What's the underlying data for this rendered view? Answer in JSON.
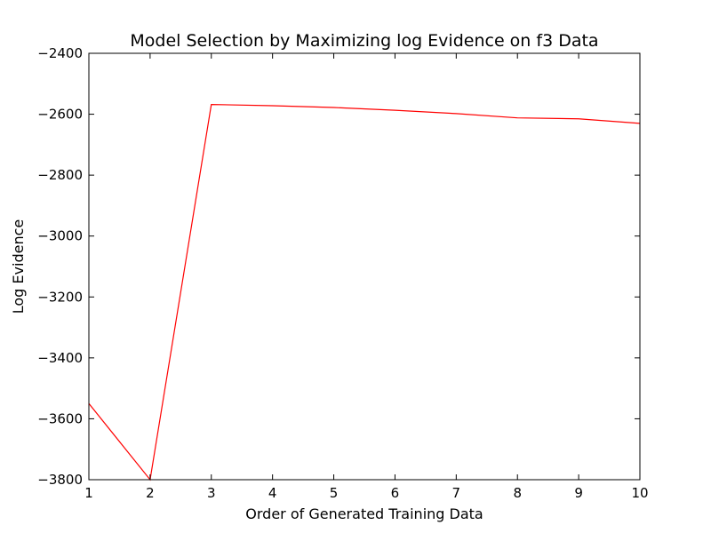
{
  "chart_data": {
    "type": "line",
    "title": "Model Selection by Maximizing log Evidence on f3 Data",
    "xlabel": "Order of Generated Training Data",
    "ylabel": "Log Evidence",
    "xlim": [
      1,
      10
    ],
    "ylim": [
      -3800,
      -2400
    ],
    "xticks": [
      1,
      2,
      3,
      4,
      5,
      6,
      7,
      8,
      9,
      10
    ],
    "yticks": [
      -2400,
      -2600,
      -2800,
      -3000,
      -3200,
      -3400,
      -3600,
      -3800
    ],
    "xtick_labels": [
      "1",
      "2",
      "3",
      "4",
      "5",
      "6",
      "7",
      "8",
      "9",
      "10"
    ],
    "ytick_labels": [
      "−2400",
      "−2600",
      "−2800",
      "−3000",
      "−3200",
      "−3400",
      "−3600",
      "−3800"
    ],
    "grid": false,
    "series": [
      {
        "color": "#ff0000",
        "x": [
          1,
          2,
          3,
          4,
          5,
          6,
          7,
          8,
          9,
          10
        ],
        "y": [
          -3550,
          -3800,
          -2568,
          -2572,
          -2578,
          -2587,
          -2598,
          -2612,
          -2615,
          -2630
        ]
      }
    ]
  }
}
